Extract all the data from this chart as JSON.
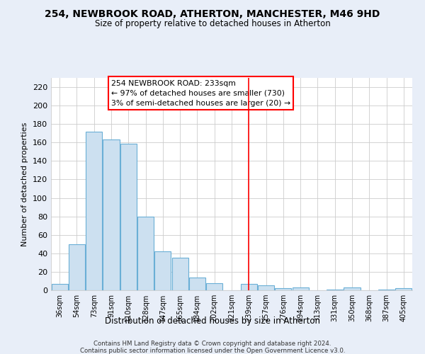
{
  "title1": "254, NEWBROOK ROAD, ATHERTON, MANCHESTER, M46 9HD",
  "title2": "Size of property relative to detached houses in Atherton",
  "xlabel": "Distribution of detached houses by size in Atherton",
  "ylabel": "Number of detached properties",
  "bin_labels": [
    "36sqm",
    "54sqm",
    "73sqm",
    "91sqm",
    "110sqm",
    "128sqm",
    "147sqm",
    "165sqm",
    "184sqm",
    "202sqm",
    "221sqm",
    "239sqm",
    "257sqm",
    "276sqm",
    "294sqm",
    "313sqm",
    "331sqm",
    "350sqm",
    "368sqm",
    "387sqm",
    "405sqm"
  ],
  "bar_heights": [
    7,
    50,
    172,
    163,
    159,
    80,
    42,
    35,
    14,
    8,
    0,
    7,
    5,
    2,
    3,
    0,
    1,
    3,
    0,
    1,
    2
  ],
  "bar_color": "#cce0f0",
  "bar_edge_color": "#6aafd6",
  "vline_index": 11,
  "annotation_title": "254 NEWBROOK ROAD: 233sqm",
  "annotation_line1": "← 97% of detached houses are smaller (730)",
  "annotation_line2": "3% of semi-detached houses are larger (20) →",
  "ylim": [
    0,
    230
  ],
  "yticks": [
    0,
    20,
    40,
    60,
    80,
    100,
    120,
    140,
    160,
    180,
    200,
    220
  ],
  "footer1": "Contains HM Land Registry data © Crown copyright and database right 2024.",
  "footer2": "Contains public sector information licensed under the Open Government Licence v3.0.",
  "bg_color": "#e8eef8",
  "plot_bg_color": "#ffffff"
}
